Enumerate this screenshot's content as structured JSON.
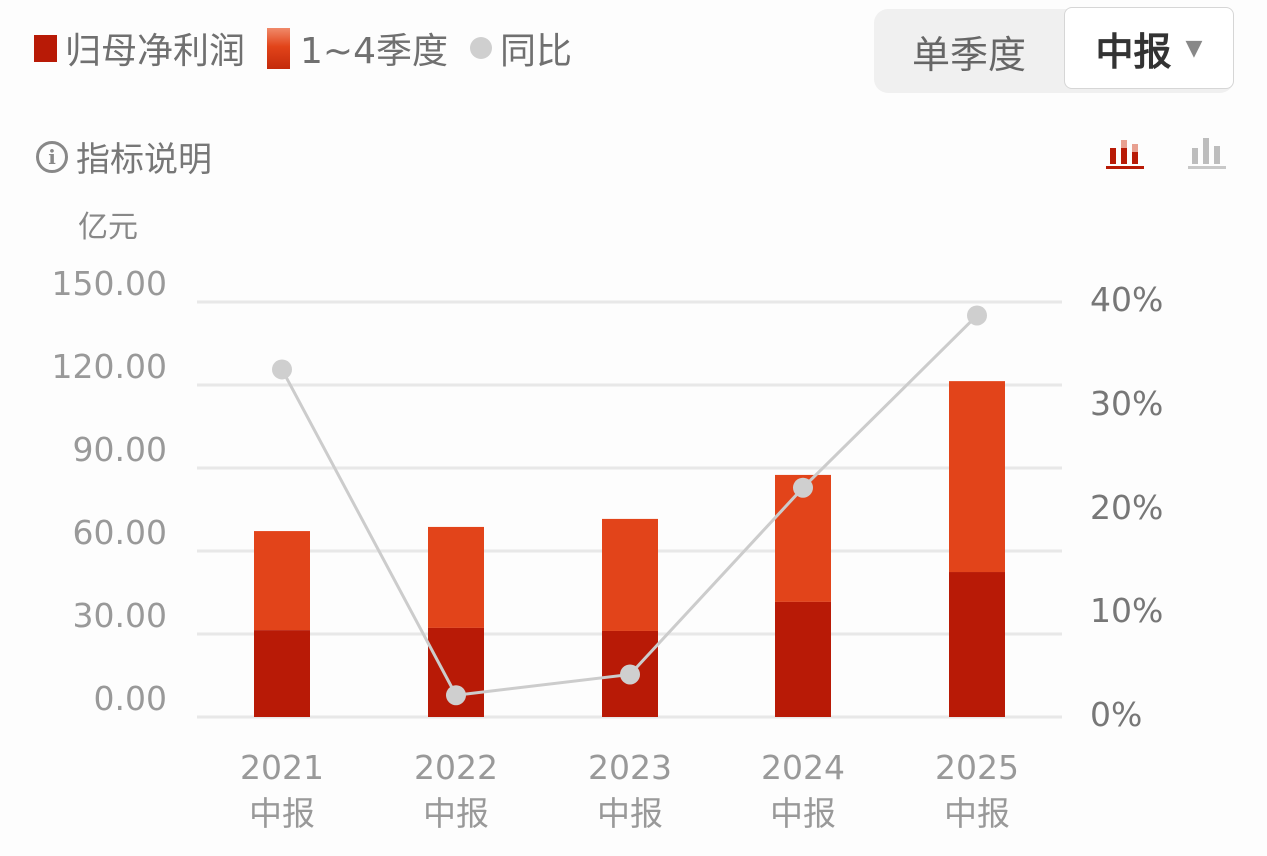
{
  "legend": {
    "items": [
      {
        "label": "归母净利润",
        "color": "#b81a06",
        "shape": "square"
      },
      {
        "label": "1~4季度",
        "color": "#e2441a",
        "shape": "gradient-bar"
      },
      {
        "label": "同比",
        "color": "#cfcfcf",
        "shape": "circle"
      }
    ]
  },
  "period_toggle": {
    "options": [
      "单季度",
      "中报"
    ],
    "selected": "中报",
    "dropdown_icon": "caret-down-icon"
  },
  "info_link": {
    "label": "指标说明",
    "icon": "info-icon"
  },
  "view_buttons": [
    {
      "name": "stacked-bar-view",
      "active": true,
      "color": "#b81a06"
    },
    {
      "name": "plain-bar-view",
      "active": false,
      "color": "#bdbdbd"
    }
  ],
  "chart_data": {
    "type": "bar",
    "subtype": "stacked-bar-with-line",
    "unit": "亿元",
    "categories": [
      "2021\n中报",
      "2022\n中报",
      "2023\n中报",
      "2024\n中报",
      "2025\n中报"
    ],
    "category_years": [
      "2021",
      "2022",
      "2023",
      "2024",
      "2025"
    ],
    "category_period": "中报",
    "series": [
      {
        "name": "归母净利润",
        "type": "bar",
        "axis": "left",
        "color": "#b81a06",
        "values": [
          31.4,
          32.2,
          31.1,
          41.6,
          52.4
        ]
      },
      {
        "name": "1~4季度",
        "type": "bar-total",
        "axis": "left",
        "color": "#e2441a",
        "values": [
          67.2,
          68.7,
          71.6,
          87.5,
          121.4
        ]
      },
      {
        "name": "同比",
        "type": "line",
        "axis": "right",
        "color": "#cfcfcf",
        "values": [
          33.5,
          2.1,
          4.1,
          22.1,
          38.7
        ],
        "unit": "%"
      }
    ],
    "left_axis": {
      "ticks": [
        "0.00",
        "30.00",
        "60.00",
        "90.00",
        "120.00",
        "150.00"
      ],
      "ylim": [
        0,
        150
      ]
    },
    "right_axis": {
      "ticks": [
        "0%",
        "10%",
        "20%",
        "30%",
        "40%"
      ],
      "ylim": [
        0,
        40
      ]
    },
    "grid": true,
    "legend_position": "top-left"
  }
}
